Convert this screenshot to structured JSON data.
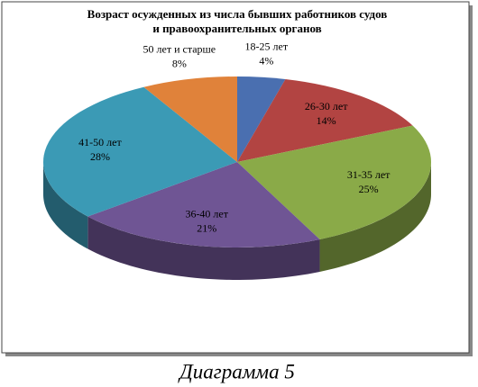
{
  "chart_data": {
    "type": "pie3d",
    "title": [
      "Возраст осужденных из числа бывших работников судов",
      "и правоохранительных органов"
    ],
    "categories": [
      "18-25 лет",
      "26-30 лет",
      "31-35 лет",
      "36-40 лет",
      "41-50 лет",
      "50 лет и старше"
    ],
    "values": [
      4,
      14,
      25,
      21,
      28,
      8
    ],
    "value_labels": [
      "4%",
      "14%",
      "25%",
      "21%",
      "28%",
      "8%"
    ],
    "colors": [
      "#4a6fb0",
      "#b24442",
      "#8aaa48",
      "#6f5594",
      "#3b9ab5",
      "#e0823a"
    ]
  },
  "caption": "Диаграмма 5"
}
